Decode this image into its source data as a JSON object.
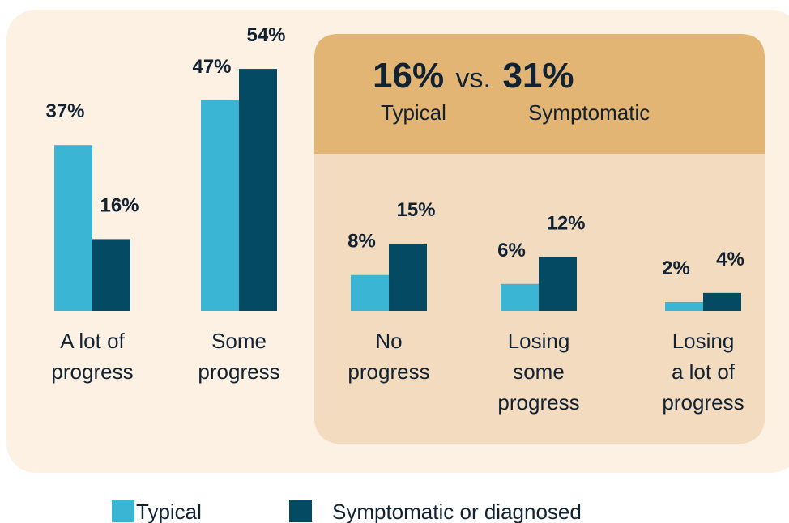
{
  "chart_data": {
    "type": "bar",
    "categories": [
      "A lot of\nprogress",
      "Some\nprogress",
      "No\nprogress",
      "Losing\nsome\nprogress",
      "Losing\na lot of\nprogress"
    ],
    "series": [
      {
        "name": "Typical",
        "color": "#3ab5d4",
        "values": [
          37,
          47,
          8,
          6,
          2
        ],
        "value_labels": [
          "37%",
          "47%",
          "8%",
          "6%",
          "2%"
        ]
      },
      {
        "name": "Symptomatic or diagnosed",
        "color": "#054a63",
        "values": [
          16,
          54,
          15,
          12,
          4
        ],
        "value_labels": [
          "16%",
          "54%",
          "15%",
          "12%",
          "4%"
        ]
      }
    ],
    "ylim": [
      0,
      56
    ],
    "callout": {
      "left": "16%",
      "joiner": "vs.",
      "right": "31%",
      "left_caption": "Typical",
      "right_caption": "Symptomatic"
    }
  }
}
